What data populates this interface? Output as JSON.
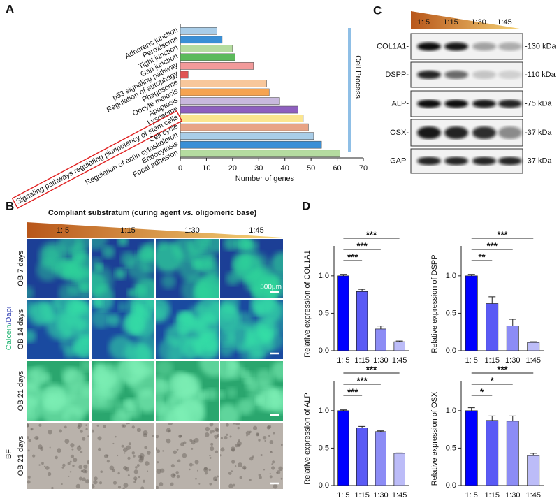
{
  "panel_labels": [
    "A",
    "B",
    "C",
    "D"
  ],
  "chart_data": [
    {
      "type": "hbar",
      "categories": [
        "Adherens junction",
        "Peroxisome",
        "Tight junction",
        "Gap junction",
        "p53 signaling pathway",
        "Regulation of autophagy",
        "Phagosome",
        "Oocyte meiosis",
        "Apoptosis",
        "Lysosome",
        "Signaling pathways regulating pluripotency of stem cells",
        "Cell cycle",
        "Regulation of actin cytoskeleton",
        "Endocytosis",
        "Focal adhesion"
      ],
      "values": [
        14,
        16,
        20,
        21,
        28,
        3,
        33,
        34,
        38,
        45,
        47,
        49,
        51,
        54,
        61
      ],
      "colors": [
        "#a9cde8",
        "#3a8fd6",
        "#b5dca0",
        "#5cba5c",
        "#f29a9a",
        "#e05555",
        "#f8c79b",
        "#f5a350",
        "#c8b8dd",
        "#8e5fbf",
        "#fbe58f",
        "#e8a486",
        "#a9cde8",
        "#3a8fd6",
        "#b5dca0"
      ],
      "xlabel": "Number of genes",
      "xlim": [
        0,
        70
      ],
      "xticks": [
        0,
        10,
        20,
        30,
        40,
        50,
        60,
        70
      ],
      "annotation": "Cell Process"
    },
    {
      "type": "bar",
      "ylabel": "Relative expression of COL1A1",
      "categories": [
        "1: 5",
        "1:15",
        "1:30",
        "1:45"
      ],
      "values": [
        1.0,
        0.79,
        0.29,
        0.12
      ],
      "errors": [
        0.02,
        0.03,
        0.04,
        0.01
      ],
      "colors": [
        "#0000ff",
        "#5a5af5",
        "#8c8cf5",
        "#bcbcf8"
      ],
      "ylim": [
        0,
        1.4
      ],
      "yticks": [
        {
          "value": 0,
          "label": "0.0"
        },
        {
          "value": 0.5,
          "label": "0.5"
        },
        {
          "value": 1,
          "label": "1.0"
        }
      ],
      "significance": [
        "***",
        "***",
        "***"
      ]
    },
    {
      "type": "bar",
      "ylabel": "Relative expression of DSPP",
      "categories": [
        "1: 5",
        "1:15",
        "1:30",
        "1:45"
      ],
      "values": [
        1.0,
        0.63,
        0.33,
        0.11
      ],
      "errors": [
        0.02,
        0.09,
        0.09,
        0.01
      ],
      "colors": [
        "#0000ff",
        "#5a5af5",
        "#8c8cf5",
        "#bcbcf8"
      ],
      "ylim": [
        0,
        1.4
      ],
      "yticks": [
        {
          "value": 0,
          "label": "0.0"
        },
        {
          "value": 0.5,
          "label": "0.5"
        },
        {
          "value": 1,
          "label": "1.0"
        }
      ],
      "significance": [
        "**",
        "***",
        "***"
      ]
    },
    {
      "type": "bar",
      "ylabel": "Relative expression of ALP",
      "categories": [
        "1: 5",
        "1:15",
        "1:30",
        "1:45"
      ],
      "values": [
        1.0,
        0.77,
        0.72,
        0.43
      ],
      "errors": [
        0.01,
        0.02,
        0.01,
        0.005
      ],
      "colors": [
        "#0000ff",
        "#5a5af5",
        "#8c8cf5",
        "#bcbcf8"
      ],
      "ylim": [
        0,
        1.4
      ],
      "yticks": [
        {
          "value": 0,
          "label": "0.0"
        },
        {
          "value": 0.5,
          "label": "0.5"
        },
        {
          "value": 1,
          "label": "1.0"
        }
      ],
      "significance": [
        "***",
        "***",
        "***"
      ]
    },
    {
      "type": "bar",
      "ylabel": "Relative expression of OSX",
      "categories": [
        "1: 5",
        "1:15",
        "1:30",
        "1:45"
      ],
      "values": [
        1.0,
        0.87,
        0.86,
        0.4
      ],
      "errors": [
        0.04,
        0.06,
        0.07,
        0.03
      ],
      "colors": [
        "#0000ff",
        "#5a5af5",
        "#8c8cf5",
        "#bcbcf8"
      ],
      "ylim": [
        0,
        1.4
      ],
      "yticks": [
        {
          "value": 0,
          "label": "0.0"
        },
        {
          "value": 0.5,
          "label": "0.5"
        },
        {
          "value": 1,
          "label": "1.0"
        }
      ],
      "significance": [
        "*",
        "*",
        "***"
      ]
    }
  ],
  "blot": {
    "ratios": [
      "1: 5",
      "1:15",
      "1:30",
      "1:45"
    ],
    "proteins": [
      "COL1A1-",
      "DSPP-",
      "ALP-",
      "OSX-",
      "GAP-"
    ],
    "sizes": [
      "-130 kDa",
      "-110 kDa",
      "-75 kDa",
      "-37 kDa",
      "-37 kDa"
    ]
  },
  "microscopy": {
    "header": "Compliant substratum (curing agent ",
    "header_italic": "vs.",
    "header_end": " oligomeric base)",
    "ratios": [
      "1: 5",
      "1:15",
      "1:30",
      "1:45"
    ],
    "rows": [
      "OB 7 days",
      "OB 14 days",
      "OB 21 days",
      "OB 21 days"
    ],
    "stain_a": "Calcein",
    "stain_b": "/Dapi",
    "bf": "BF",
    "scale": "500μm"
  }
}
